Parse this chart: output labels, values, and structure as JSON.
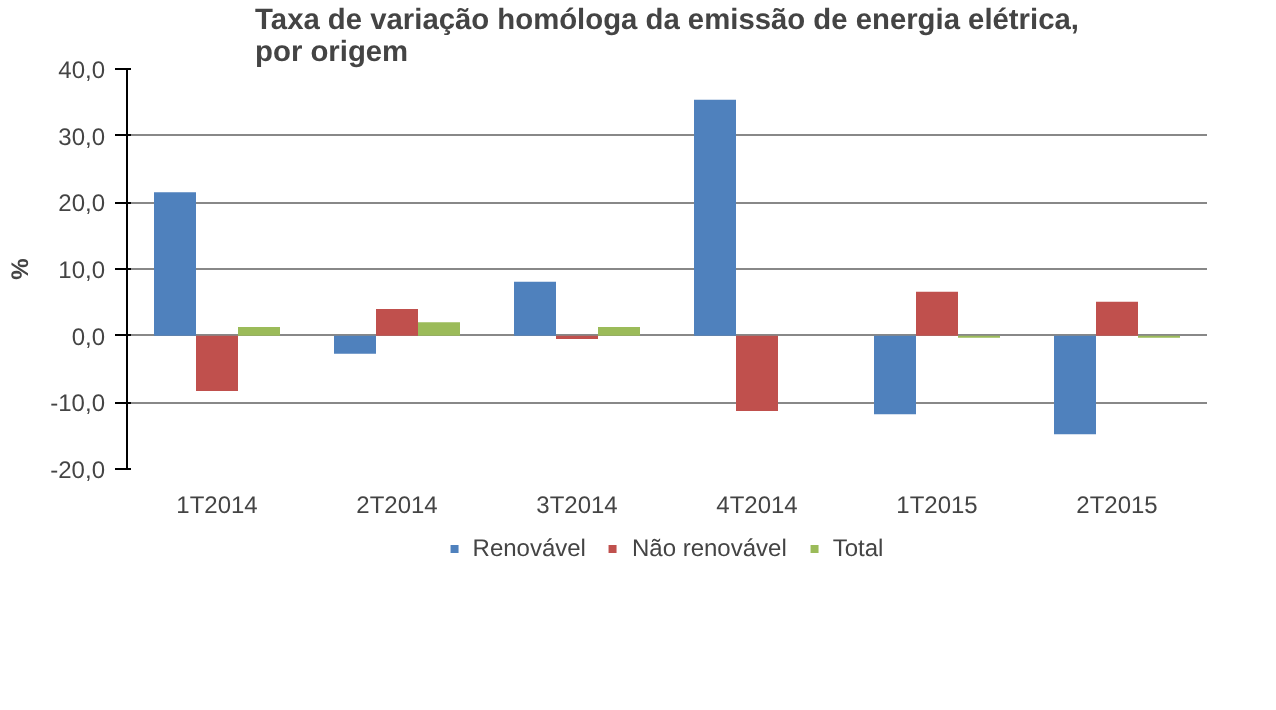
{
  "chart_data": {
    "type": "bar",
    "title": "Taxa de variação homóloga da emissão de energia elétrica,\npor origem",
    "ylabel": "%",
    "categories": [
      "1T2014",
      "2T2014",
      "3T2014",
      "4T2014",
      "1T2015",
      "2T2015"
    ],
    "series": [
      {
        "name": "Renovável",
        "color": "#4f81bd",
        "values": [
          21.5,
          -2.7,
          8.1,
          35.4,
          -11.8,
          -14.8
        ]
      },
      {
        "name": "Não renovável",
        "color": "#c0504d",
        "values": [
          -8.3,
          4.0,
          -0.5,
          -11.3,
          6.6,
          5.1
        ]
      },
      {
        "name": "Total",
        "color": "#9bbb59",
        "values": [
          1.3,
          2.0,
          1.3,
          0.0,
          -0.3,
          -0.3
        ]
      }
    ],
    "ylim": [
      -20,
      40
    ],
    "yticks": [
      {
        "value": -20,
        "label": "-20,0"
      },
      {
        "value": -10,
        "label": "-10,0"
      },
      {
        "value": 0,
        "label": "0,0"
      },
      {
        "value": 10,
        "label": "10,0"
      },
      {
        "value": 20,
        "label": "20,0"
      },
      {
        "value": 30,
        "label": "30,0"
      },
      {
        "value": 40,
        "label": "40,0"
      }
    ],
    "grid": "y",
    "legend": "bottom"
  }
}
